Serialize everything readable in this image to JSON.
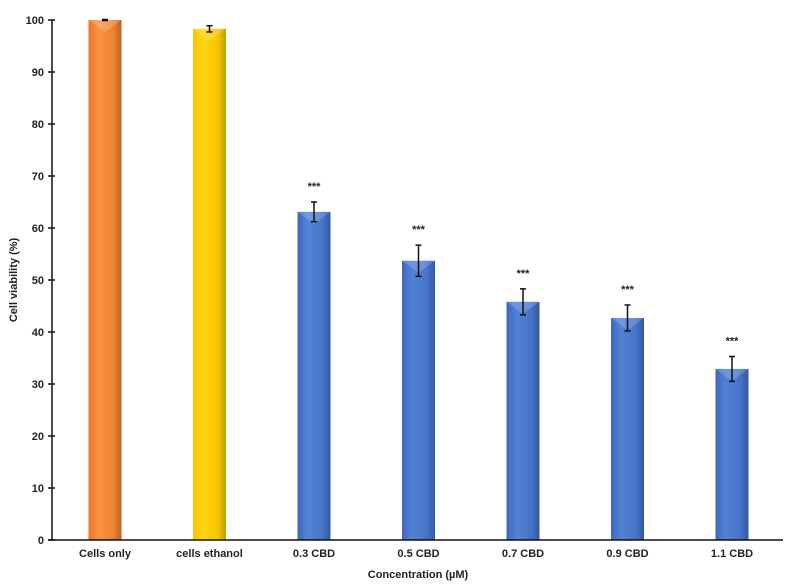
{
  "chart_data": {
    "type": "bar",
    "title": "",
    "xlabel": "Concentration (µM)",
    "ylabel": "Cell viability (%)",
    "ylim": [
      0,
      100
    ],
    "yticks": [
      0,
      10,
      20,
      30,
      40,
      50,
      60,
      70,
      80,
      90,
      100
    ],
    "grid": false,
    "legend": null,
    "categories": [
      "Cells only",
      "cells ethanol",
      "0.3 CBD",
      "0.5 CBD",
      "0.7 CBD",
      "0.9 CBD",
      "1.1 CBD"
    ],
    "values": [
      100,
      98.3,
      63.1,
      53.7,
      45.8,
      42.7,
      32.9
    ],
    "errors": [
      0.1,
      0.6,
      1.9,
      3.0,
      2.5,
      2.5,
      2.4
    ],
    "significance": [
      "",
      "",
      "***",
      "***",
      "***",
      "***",
      "***"
    ],
    "colors": [
      "#F5883A",
      "#FFCC00",
      "#4472C4",
      "#4472C4",
      "#4472C4",
      "#4472C4",
      "#4472C4"
    ]
  }
}
